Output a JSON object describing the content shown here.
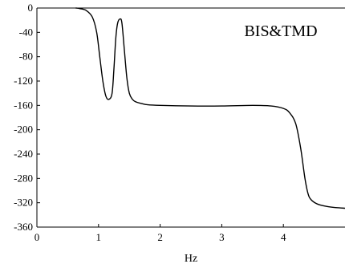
{
  "chart_data": {
    "type": "line",
    "title": "",
    "annotation": "BIS&TMD",
    "xlabel": "Hz",
    "ylabel": "",
    "xlim": [
      0,
      5
    ],
    "ylim": [
      -360,
      0
    ],
    "xticks": [
      0,
      1,
      2,
      3,
      4
    ],
    "xtick_labels": [
      "0",
      "1",
      "2",
      "3",
      "4"
    ],
    "yticks": [
      0,
      -40,
      -80,
      -120,
      -160,
      -200,
      -240,
      -280,
      -320,
      -360
    ],
    "ytick_labels": [
      "0",
      "-40",
      "-80",
      "-120",
      "-160",
      "-200",
      "-240",
      "-280",
      "-320",
      "-360"
    ],
    "grid": false,
    "series": [
      {
        "x": [
          0.63,
          0.7,
          0.8,
          0.9,
          0.97,
          1.02,
          1.07,
          1.12,
          1.17,
          1.22,
          1.25,
          1.28,
          1.31,
          1.35,
          1.38,
          1.42,
          1.46,
          1.5,
          1.55,
          1.6,
          1.7,
          1.8,
          2.0,
          2.5,
          3.0,
          3.5,
          3.8,
          4.0,
          4.1,
          4.2,
          4.28,
          4.35,
          4.4,
          4.45,
          4.55,
          4.7,
          4.85,
          5.0
        ],
        "y": [
          0,
          -1,
          -4,
          -15,
          -40,
          -80,
          -120,
          -145,
          -150,
          -140,
          -100,
          -50,
          -25,
          -18,
          -25,
          -70,
          -115,
          -140,
          -150,
          -154,
          -157,
          -159,
          -160,
          -161,
          -161,
          -160,
          -161,
          -165,
          -172,
          -190,
          -230,
          -280,
          -305,
          -315,
          -322,
          -326,
          -328,
          -329
        ]
      }
    ]
  }
}
